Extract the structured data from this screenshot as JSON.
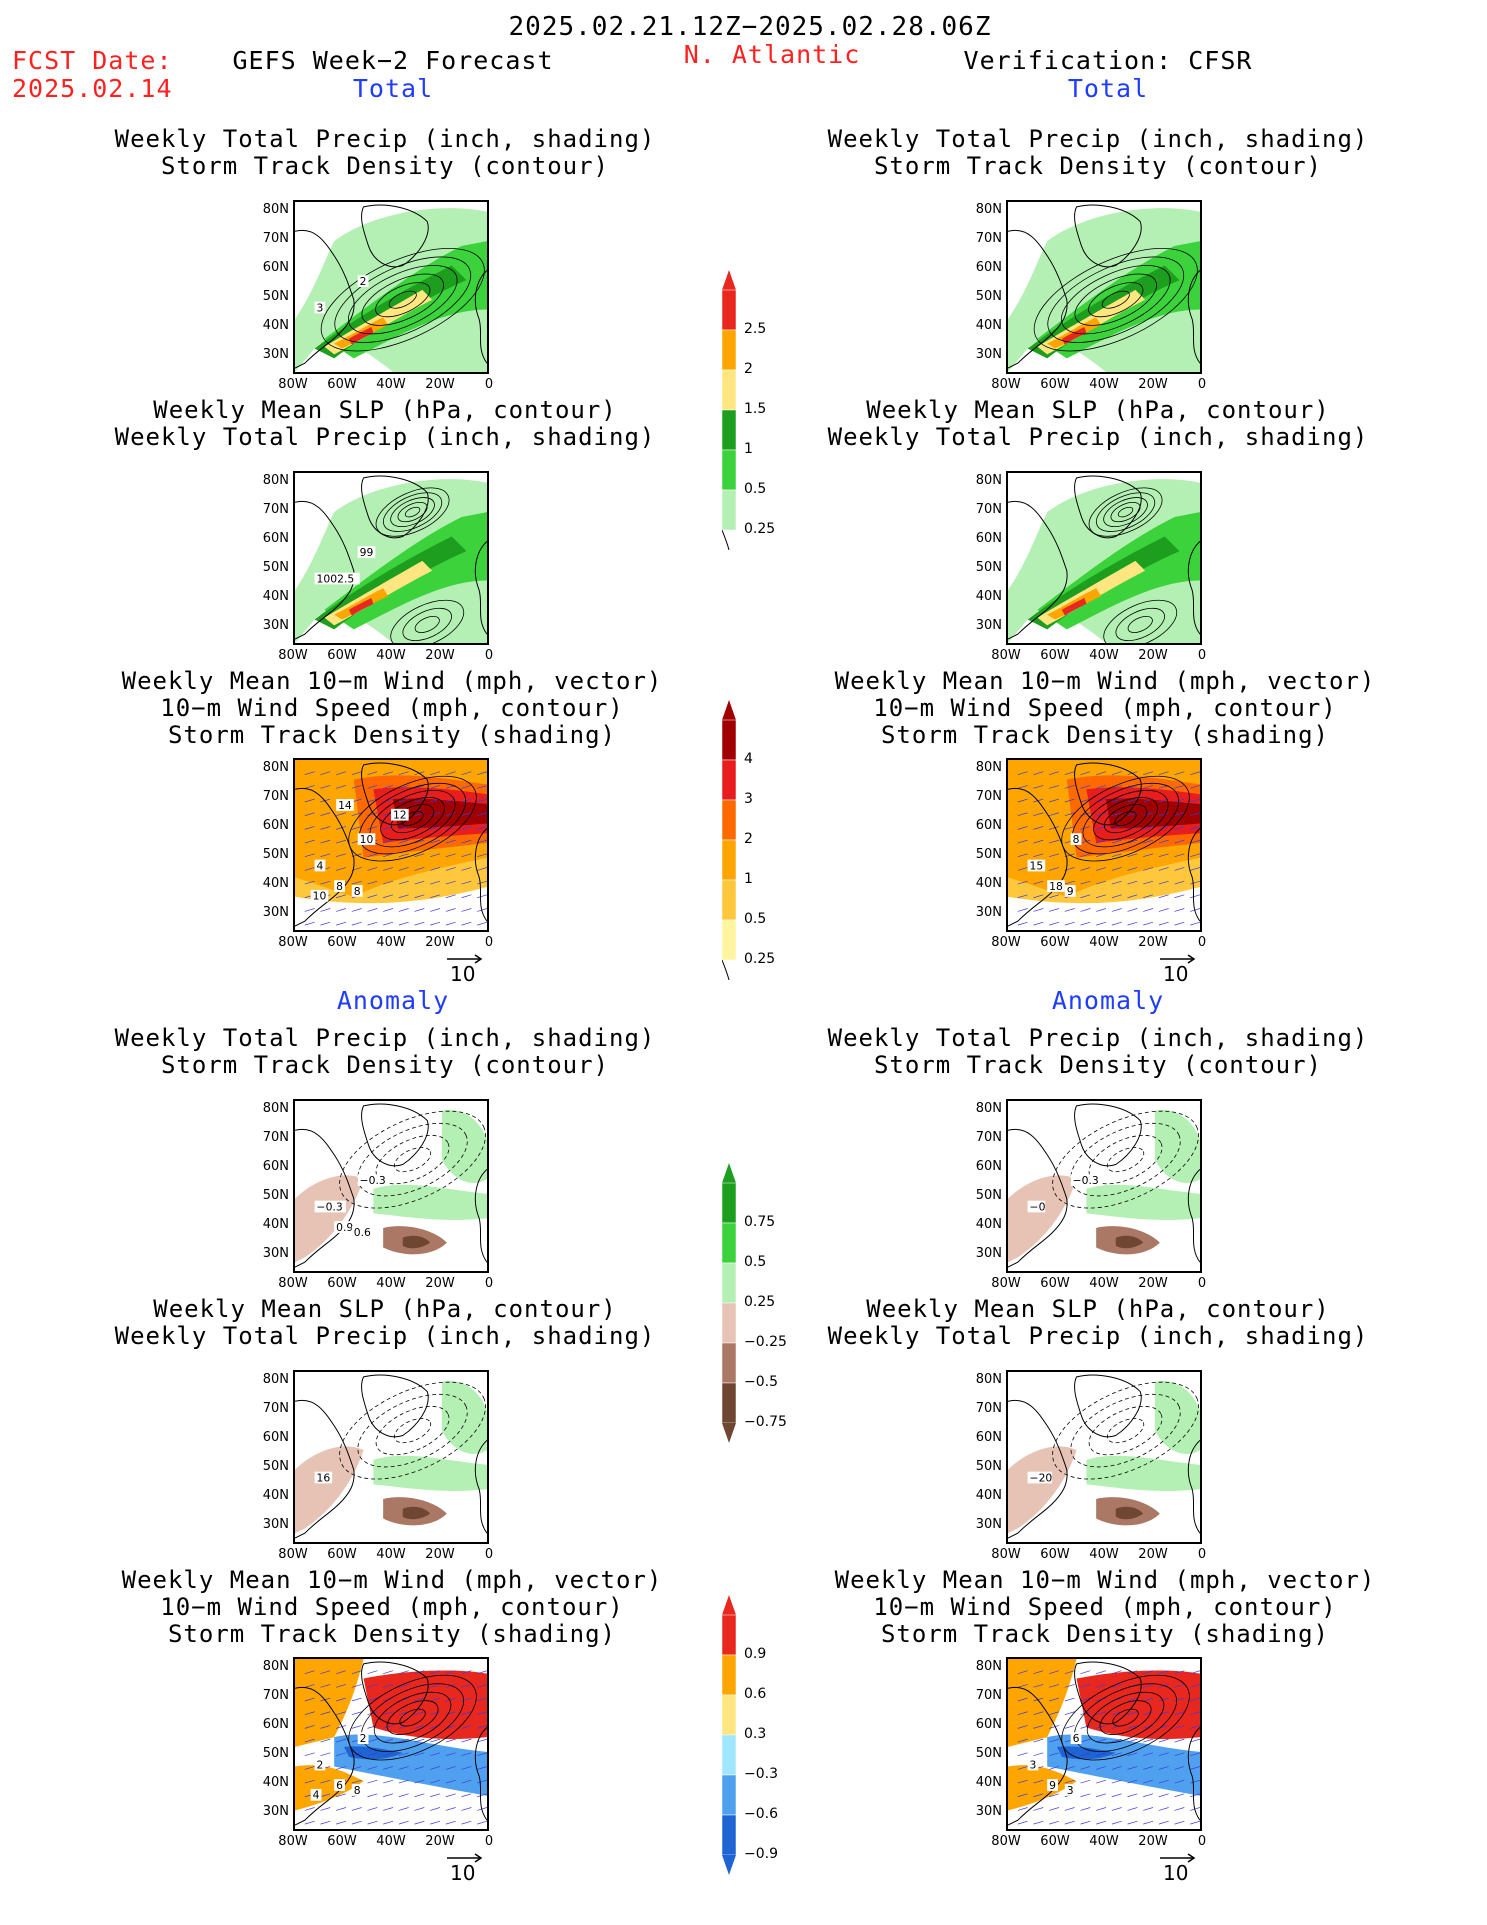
{
  "header": {
    "period": "2025.02.21.12Z−2025.02.28.06Z",
    "fcst_label": "FCST Date:",
    "fcst_date": "2025.02.14",
    "model": "GEFS Week−2 Forecast",
    "region": "N. Atlantic",
    "verification": "Verification: CFSR"
  },
  "sections": {
    "total": "Total",
    "anomaly": "Anomaly"
  },
  "captions": {
    "precip_track": [
      "Weekly Total Precip (inch, shading)",
      "Storm Track Density (contour)"
    ],
    "slp_precip": [
      "Weekly Mean SLP (hPa, contour)",
      "Weekly Total Precip (inch, shading)"
    ],
    "wind_track": [
      "Weekly Mean 10−m Wind (mph, vector)",
      "10−m Wind Speed (mph, contour)",
      "Storm Track Density (shading)"
    ]
  },
  "axes": {
    "lat": [
      "80N",
      "70N",
      "60N",
      "50N",
      "40N",
      "30N"
    ],
    "lon": [
      "80W",
      "60W",
      "40W",
      "20W",
      "0"
    ]
  },
  "vector_ref": "10",
  "colorbars": {
    "precip_total": [
      "2.5",
      "2",
      "1.5",
      "1",
      "0.5",
      "0.25"
    ],
    "track_total": [
      "4",
      "3",
      "2",
      "1",
      "0.5",
      "0.25"
    ],
    "precip_anom": [
      "0.75",
      "0.5",
      "0.25",
      "−0.25",
      "−0.5",
      "−0.75"
    ],
    "track_anom": [
      "0.9",
      "0.6",
      "0.3",
      "−0.3",
      "−0.6",
      "−0.9"
    ]
  },
  "colors": {
    "precip_total": [
      "#e8281e",
      "#ffa500",
      "#ffe680",
      "#1e9e1e",
      "#3cd23c",
      "#b4f0b4"
    ],
    "track_total": [
      "#a00000",
      "#e81e1e",
      "#ff6a00",
      "#ffa500",
      "#ffc83c",
      "#fff5a0"
    ],
    "precip_anom": [
      "#1e9e1e",
      "#3cd23c",
      "#b4f0b4",
      "#e6c3b4",
      "#aa7864",
      "#6e4632"
    ],
    "track_anom": [
      "#e8281e",
      "#ffa500",
      "#ffe680",
      "#a0e6ff",
      "#50a0f0",
      "#1e64d2"
    ]
  },
  "map_labels": {
    "f_pt": [
      "3",
      "2"
    ],
    "f_slp": [
      "1002.5",
      "99"
    ],
    "f_wind": [
      "4",
      "10",
      "8",
      "8",
      "10",
      "12",
      "14"
    ],
    "v_wind": [
      "15",
      "8",
      "18",
      "9"
    ],
    "f_pa": [
      "−0.3",
      "−0.3",
      "0.9",
      "0.6"
    ],
    "v_pa": [
      "−0",
      "−0.3"
    ],
    "f_sa": [
      "16"
    ],
    "v_sa": [
      "−20"
    ],
    "f_wa": [
      "2",
      "2",
      "6",
      "8",
      "4"
    ],
    "v_wa": [
      "3",
      "6",
      "9",
      "3"
    ]
  }
}
